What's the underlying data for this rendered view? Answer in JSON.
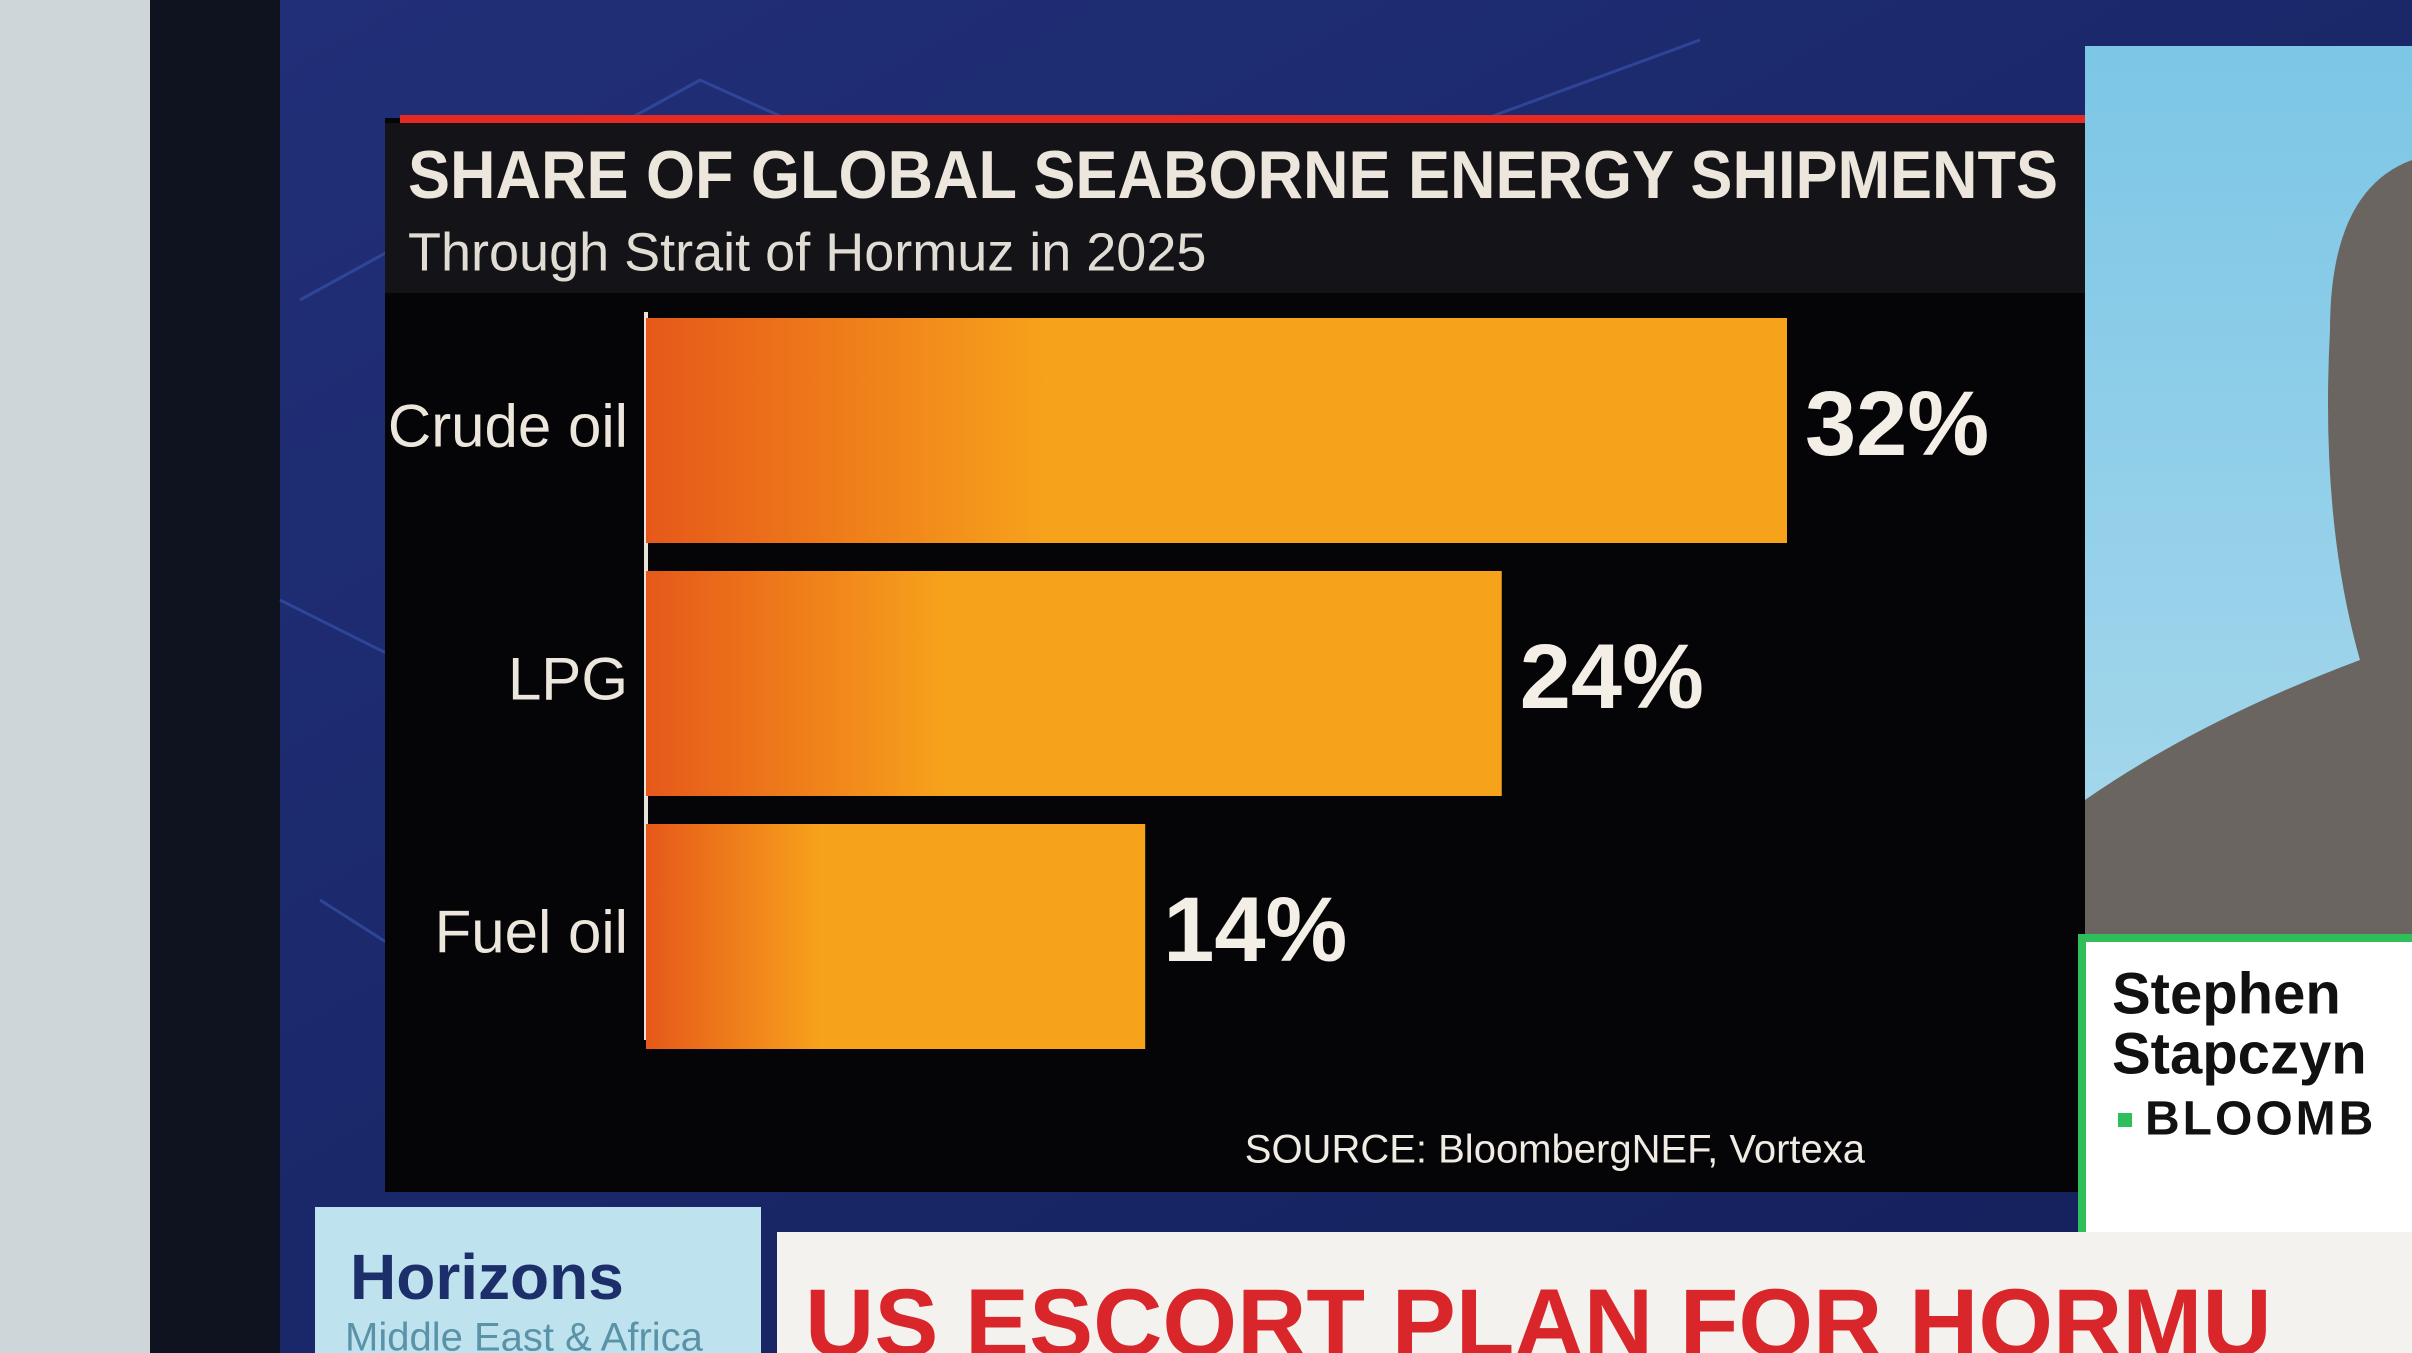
{
  "chart_data": {
    "type": "bar",
    "orientation": "horizontal",
    "title": "SHARE OF GLOBAL SEABORNE ENERGY SHIPMENTS",
    "subtitle": "Through Strait of Hormuz in 2025",
    "categories": [
      "Crude oil",
      "LPG",
      "Fuel oil"
    ],
    "values": [
      32,
      24,
      14
    ],
    "value_labels": [
      "32%",
      "24%",
      "14%"
    ],
    "color": "#f7a21b",
    "source": "SOURCE: BloombergNEF, Vortexa"
  },
  "screen": {
    "presenter": [
      "Stephen",
      "Stapczyn"
    ],
    "network": "BLOOMB",
    "show": "Horizons",
    "show_region": "Middle East & Africa",
    "headline": "US ESCORT PLAN FOR HORMU"
  }
}
